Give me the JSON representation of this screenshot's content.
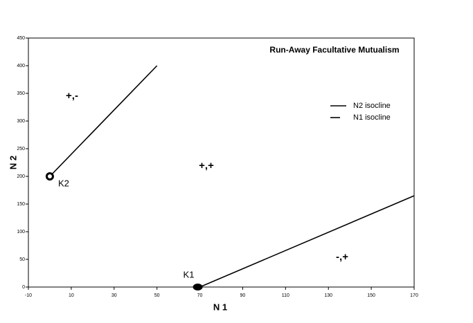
{
  "chart_data": {
    "type": "line",
    "title": "Run-Away Facultative Mutualism",
    "x_label": "N 1",
    "y_label": "N 2",
    "xlim": [
      -10,
      170
    ],
    "xticks": [
      -10,
      10,
      30,
      50,
      70,
      90,
      110,
      130,
      150,
      170
    ],
    "ylim": [
      0,
      450
    ],
    "yticks": [
      0,
      50,
      100,
      150,
      200,
      250,
      300,
      350,
      400,
      450
    ],
    "grid": false,
    "legend": "upper right",
    "series": [
      {
        "name": "N2 isocline",
        "color": "#000000",
        "x": [
          0,
          50
        ],
        "values": [
          200,
          400
        ]
      },
      {
        "name": "N1 isocline",
        "color": "#000000",
        "x": [
          70,
          170
        ],
        "values": [
          0,
          165
        ]
      }
    ],
    "points": [
      {
        "label": "K2",
        "x": 0,
        "y": 200
      },
      {
        "label": "K1",
        "x": 70,
        "y": 0
      }
    ],
    "annotations": [
      "+,-",
      "+,+",
      "-,+"
    ]
  }
}
